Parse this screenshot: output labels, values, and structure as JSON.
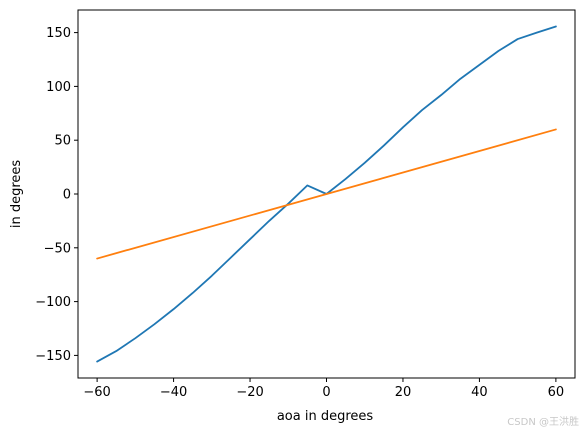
{
  "chart_data": {
    "type": "line",
    "title": "",
    "xlabel": "aoa in degrees",
    "ylabel": "in degrees",
    "xlim": [
      -65,
      65
    ],
    "ylim": [
      -171,
      171
    ],
    "x_ticks": [
      -60,
      -40,
      -20,
      0,
      20,
      40,
      60
    ],
    "y_ticks": [
      -150,
      -100,
      -50,
      0,
      50,
      100,
      150
    ],
    "grid": false,
    "legend": "none",
    "series": [
      {
        "color": "#1f77b4",
        "x": [
          -60,
          -55,
          -50,
          -45,
          -40,
          -35,
          -30,
          -25,
          -20,
          -15,
          -10,
          -5,
          0,
          5,
          10,
          15,
          20,
          25,
          30,
          35,
          40,
          45,
          50,
          55,
          60
        ],
        "y": [
          -155.7,
          -146,
          -134,
          -121,
          -107,
          -92,
          -76,
          -59,
          -42,
          -25,
          -9,
          8,
          0,
          14,
          29,
          45,
          62,
          78,
          92,
          107,
          120,
          133,
          144,
          150,
          155.7
        ]
      },
      {
        "color": "#ff7f0e",
        "x": [
          -60,
          60
        ],
        "y": [
          -60,
          60
        ]
      }
    ]
  },
  "watermark": "CSDN @王洪胜"
}
